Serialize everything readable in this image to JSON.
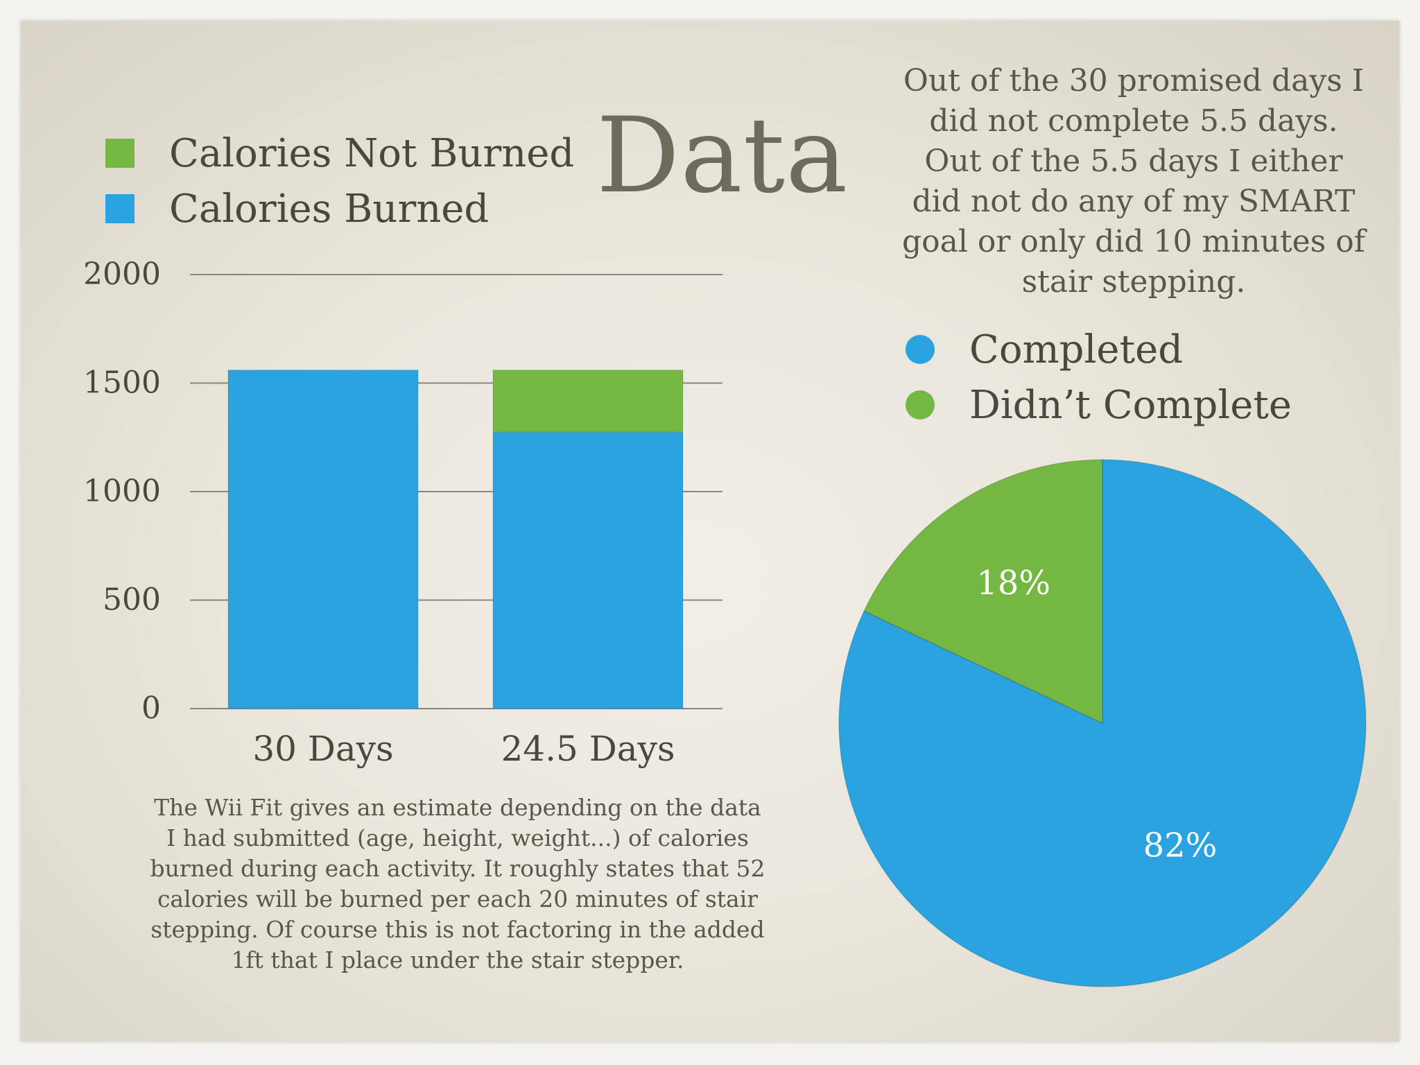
{
  "slide": {
    "title": "Data",
    "top_note": "Out of the 30 promised days I did not complete 5.5 days. Out of the 5.5 days I either did not do any of my SMART goal or only did 10 minutes of stair stepping.",
    "bottom_note": "The Wii Fit gives an estimate depending on the data I had submitted (age, height, weight...) of calories burned during each activity. It roughly states that 52 calories will be burned per each 20 minutes of stair stepping. Of course this is not factoring in the added 1ft that I place under the stair stepper."
  },
  "colors": {
    "blue": "#2aa3e0",
    "green": "#74b743",
    "grid": "#8a867b",
    "text": "#4a473d",
    "label_white": "#ffffff"
  },
  "chart_data": [
    {
      "type": "bar",
      "stacked": true,
      "categories": [
        "30 Days",
        "24.5 Days"
      ],
      "series": [
        {
          "name": "Calories Burned",
          "values": [
            1560,
            1274
          ],
          "color": "#2aa3e0"
        },
        {
          "name": "Calories Not Burned",
          "values": [
            0,
            286
          ],
          "color": "#74b743"
        }
      ],
      "legend": [
        "Calories Not Burned",
        "Calories Burned"
      ],
      "yticks": [
        "0",
        "500",
        "1000",
        "1500",
        "2000"
      ],
      "ylim": [
        0,
        2000
      ],
      "grid": true,
      "title": "",
      "xlabel": "",
      "ylabel": ""
    },
    {
      "type": "pie",
      "slices": [
        {
          "name": "Completed",
          "value": 82,
          "label": "82%",
          "color": "#2aa3e0"
        },
        {
          "name": "Didn’t Complete",
          "value": 18,
          "label": "18%",
          "color": "#74b743"
        }
      ],
      "legend": [
        "Completed",
        "Didn’t Complete"
      ]
    }
  ]
}
